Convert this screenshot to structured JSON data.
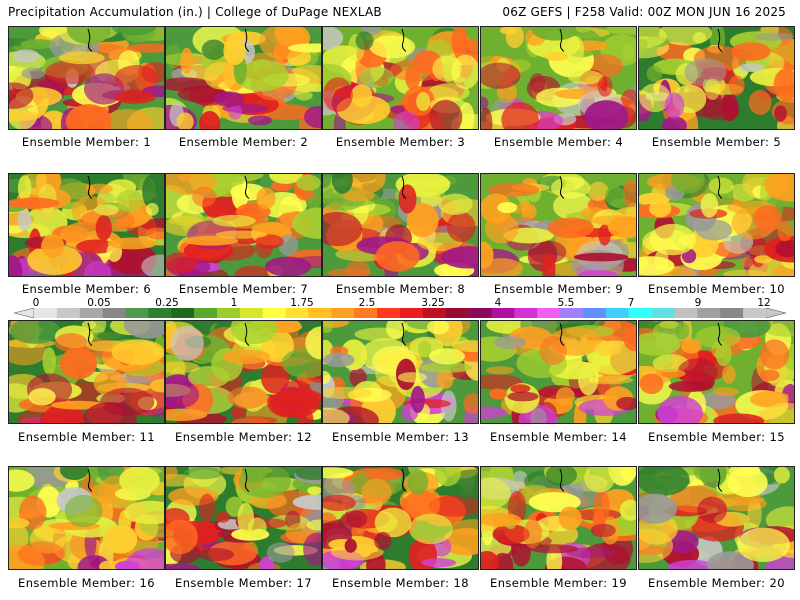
{
  "header": {
    "title_left": "Precipitation Accumulation (in.) | College of DuPage NEXLAB",
    "title_right": "06Z GEFS | F258 Valid: 00Z MON JUN 16 2025"
  },
  "panels": [
    {
      "label": "Ensemble Member: 1"
    },
    {
      "label": "Ensemble Member: 2"
    },
    {
      "label": "Ensemble Member: 3"
    },
    {
      "label": "Ensemble Member: 4"
    },
    {
      "label": "Ensemble Member: 5"
    },
    {
      "label": "Ensemble Member: 6"
    },
    {
      "label": "Ensemble Member: 7"
    },
    {
      "label": "Ensemble Member: 8"
    },
    {
      "label": "Ensemble Member: 9"
    },
    {
      "label": "Ensemble Member: 10"
    },
    {
      "label": "Ensemble Member: 11"
    },
    {
      "label": "Ensemble Member: 12"
    },
    {
      "label": "Ensemble Member: 13"
    },
    {
      "label": "Ensemble Member: 14"
    },
    {
      "label": "Ensemble Member: 15"
    },
    {
      "label": "Ensemble Member: 16"
    },
    {
      "label": "Ensemble Member: 17"
    },
    {
      "label": "Ensemble Member: 18"
    },
    {
      "label": "Ensemble Member: 19"
    },
    {
      "label": "Ensemble Member: 20"
    }
  ],
  "colorbar": {
    "tick_labels": [
      "0",
      "0.05",
      "0.25",
      "1",
      "1.75",
      "2.5",
      "3.25",
      "4",
      "5.5",
      "7",
      "9",
      "12"
    ],
    "colors": [
      "#e6e6e6",
      "#c8c8c8",
      "#a8a8a8",
      "#888888",
      "#4f9a4f",
      "#2f7f2f",
      "#1e6a1e",
      "#5aa82a",
      "#9ccc2a",
      "#d7e62a",
      "#ffff40",
      "#ffe030",
      "#ffc020",
      "#ffa020",
      "#ff7a20",
      "#ff3a20",
      "#e81e1e",
      "#c01020",
      "#9a0a30",
      "#8a0a5a",
      "#b010a0",
      "#d830d8",
      "#f060f0",
      "#a080ff",
      "#6090ff",
      "#40d0ff",
      "#30ffff",
      "#60e0e0",
      "#c0c0c0",
      "#a0a0a0",
      "#888888",
      "#c8c8c8"
    ]
  }
}
